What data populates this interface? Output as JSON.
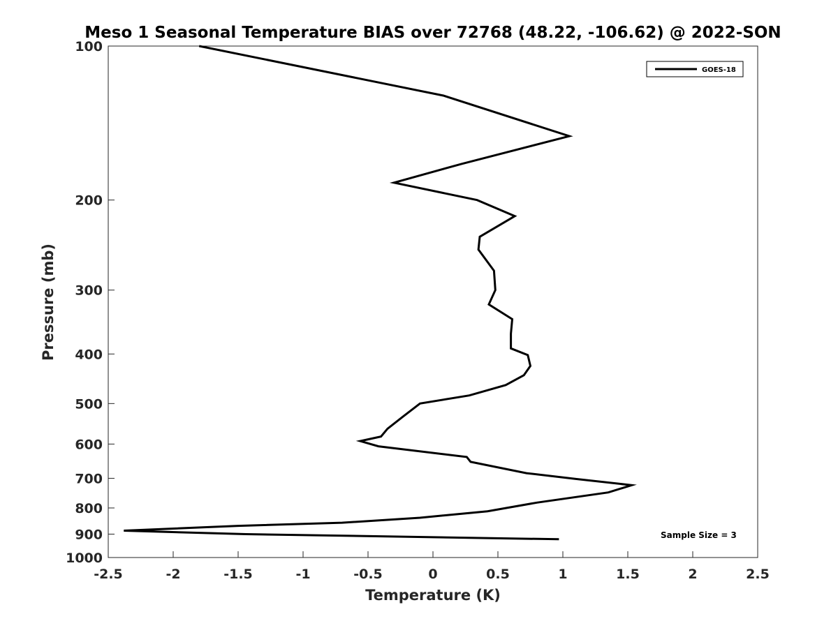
{
  "chart_data": {
    "type": "line",
    "title": "Meso 1 Seasonal Temperature BIAS over 72768 (48.22, -106.62) @ 2022-SON",
    "xlabel": "Temperature (K)",
    "ylabel": "Pressure (mb)",
    "xlim": [
      -2.5,
      2.5
    ],
    "ylim": [
      100,
      1000
    ],
    "yscale": "log",
    "y_reversed": true,
    "grid": false,
    "xticks": [
      -2.5,
      -2,
      -1.5,
      -1,
      -0.5,
      0,
      0.5,
      1,
      1.5,
      2,
      2.5
    ],
    "xtick_labels": [
      "-2.5",
      "-2",
      "-1.5",
      "-1",
      "-0.5",
      "0",
      "0.5",
      "1",
      "1.5",
      "2",
      "2.5"
    ],
    "yticks": [
      100,
      200,
      300,
      400,
      500,
      600,
      700,
      800,
      900,
      1000
    ],
    "ytick_labels": [
      "100",
      "200",
      "300",
      "400",
      "500",
      "600",
      "700",
      "800",
      "900",
      "1000"
    ],
    "legend_position": "top-right",
    "series": [
      {
        "name": "GOES-18",
        "color": "#000000",
        "x": [
          -1.8,
          0.08,
          1.05,
          0.22,
          -0.3,
          0.34,
          0.63,
          0.36,
          0.35,
          0.47,
          0.48,
          0.43,
          0.61,
          0.6,
          0.6,
          0.73,
          0.75,
          0.7,
          0.56,
          0.28,
          -0.1,
          -0.23,
          -0.35,
          -0.4,
          -0.56,
          -0.42,
          0.26,
          0.29,
          0.72,
          1.1,
          1.53,
          1.35,
          0.8,
          0.42,
          -0.1,
          -0.7,
          -1.5,
          -2.38,
          -1.44,
          0.97
        ],
        "y": [
          100,
          125,
          150,
          170,
          185,
          200,
          215,
          236,
          250,
          275,
          300,
          320,
          342,
          365,
          390,
          402,
          422,
          440,
          460,
          482,
          500,
          530,
          560,
          580,
          592,
          606,
          636,
          650,
          684,
          702,
          722,
          746,
          781,
          812,
          836,
          855,
          867,
          886,
          900,
          921
        ]
      }
    ],
    "annotations": [
      "Sample Size = 3"
    ]
  }
}
